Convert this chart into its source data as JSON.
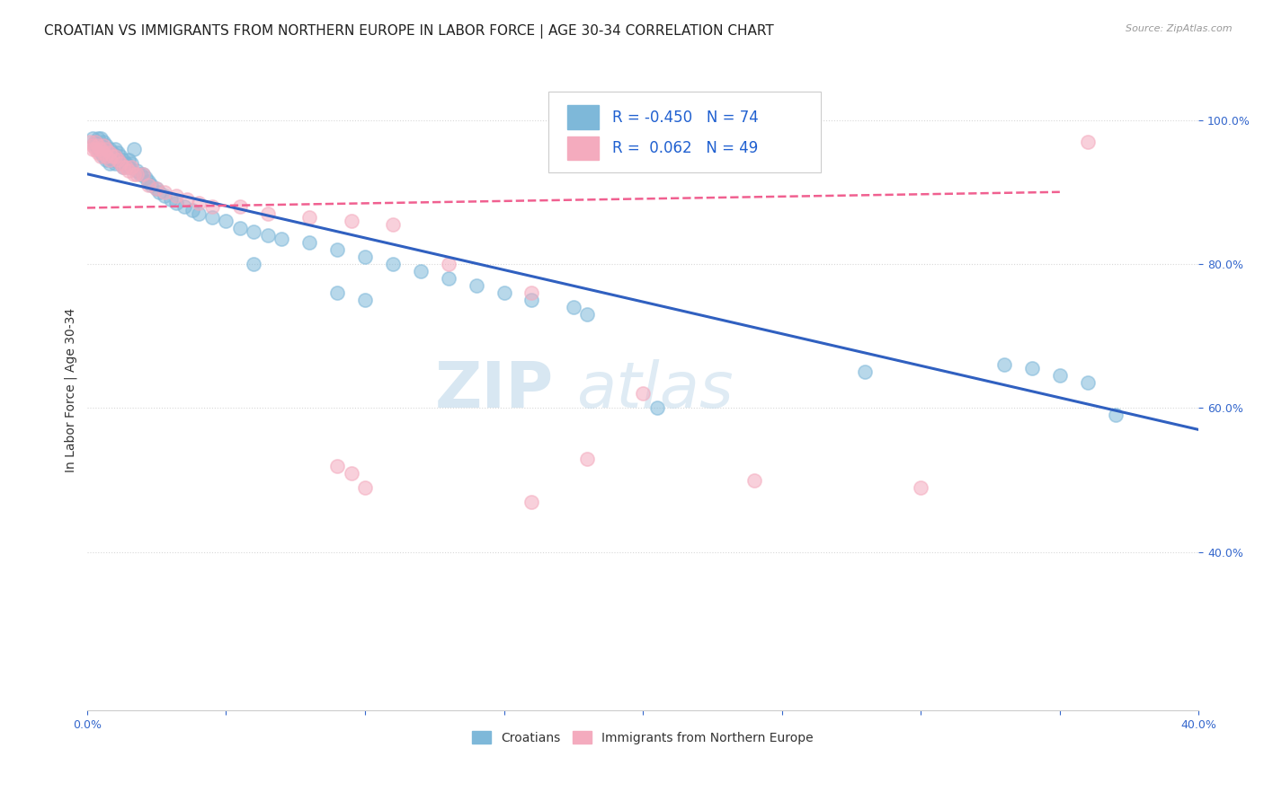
{
  "title": "CROATIAN VS IMMIGRANTS FROM NORTHERN EUROPE IN LABOR FORCE | AGE 30-34 CORRELATION CHART",
  "source": "Source: ZipAtlas.com",
  "ylabel": "In Labor Force | Age 30-34",
  "xlim": [
    0.0,
    0.4
  ],
  "ylim": [
    0.18,
    1.07
  ],
  "xticks": [
    0.0,
    0.05,
    0.1,
    0.15,
    0.2,
    0.25,
    0.3,
    0.35,
    0.4
  ],
  "xtick_labels": [
    "0.0%",
    "",
    "",
    "",
    "",
    "",
    "",
    "",
    "40.0%"
  ],
  "yticks": [
    0.4,
    0.6,
    0.8,
    1.0
  ],
  "ytick_labels": [
    "40.0%",
    "60.0%",
    "80.0%",
    "100.0%"
  ],
  "blue_R": -0.45,
  "blue_N": 74,
  "pink_R": 0.062,
  "pink_N": 49,
  "blue_color": "#7EB8D9",
  "pink_color": "#F4ABBE",
  "blue_line_color": "#3060C0",
  "pink_line_color": "#F06090",
  "legend_R_color": "#2060D0",
  "watermark_zip": "ZIP",
  "watermark_atlas": "atlas",
  "blue_trend_x": [
    0.0,
    0.4
  ],
  "blue_trend_y": [
    0.925,
    0.57
  ],
  "pink_trend_x": [
    0.0,
    0.35
  ],
  "pink_trend_y": [
    0.878,
    0.9
  ],
  "blue_scatter_x": [
    0.002,
    0.003,
    0.003,
    0.004,
    0.004,
    0.005,
    0.005,
    0.005,
    0.006,
    0.006,
    0.006,
    0.007,
    0.007,
    0.007,
    0.008,
    0.008,
    0.008,
    0.009,
    0.009,
    0.01,
    0.01,
    0.01,
    0.011,
    0.011,
    0.012,
    0.012,
    0.013,
    0.013,
    0.014,
    0.015,
    0.015,
    0.016,
    0.017,
    0.018,
    0.019,
    0.02,
    0.021,
    0.022,
    0.023,
    0.025,
    0.026,
    0.028,
    0.03,
    0.032,
    0.035,
    0.038,
    0.04,
    0.045,
    0.05,
    0.055,
    0.06,
    0.065,
    0.07,
    0.08,
    0.09,
    0.1,
    0.11,
    0.12,
    0.13,
    0.14,
    0.15,
    0.16,
    0.175,
    0.06,
    0.09,
    0.1,
    0.18,
    0.205,
    0.28,
    0.33,
    0.34,
    0.35,
    0.36,
    0.37
  ],
  "blue_scatter_y": [
    0.975,
    0.97,
    0.965,
    0.975,
    0.96,
    0.975,
    0.965,
    0.955,
    0.97,
    0.96,
    0.95,
    0.965,
    0.955,
    0.945,
    0.96,
    0.95,
    0.94,
    0.955,
    0.945,
    0.96,
    0.95,
    0.94,
    0.955,
    0.945,
    0.95,
    0.94,
    0.945,
    0.935,
    0.94,
    0.945,
    0.935,
    0.94,
    0.96,
    0.93,
    0.925,
    0.925,
    0.92,
    0.915,
    0.91,
    0.905,
    0.9,
    0.895,
    0.89,
    0.885,
    0.88,
    0.875,
    0.87,
    0.865,
    0.86,
    0.85,
    0.845,
    0.84,
    0.835,
    0.83,
    0.82,
    0.81,
    0.8,
    0.79,
    0.78,
    0.77,
    0.76,
    0.75,
    0.74,
    0.8,
    0.76,
    0.75,
    0.73,
    0.6,
    0.65,
    0.66,
    0.655,
    0.645,
    0.635,
    0.59
  ],
  "pink_scatter_x": [
    0.001,
    0.002,
    0.002,
    0.003,
    0.003,
    0.004,
    0.004,
    0.005,
    0.005,
    0.006,
    0.006,
    0.007,
    0.007,
    0.008,
    0.008,
    0.009,
    0.01,
    0.011,
    0.012,
    0.013,
    0.014,
    0.015,
    0.016,
    0.017,
    0.018,
    0.02,
    0.022,
    0.025,
    0.028,
    0.032,
    0.036,
    0.04,
    0.045,
    0.055,
    0.065,
    0.08,
    0.095,
    0.11,
    0.13,
    0.16,
    0.18,
    0.2,
    0.24,
    0.3,
    0.36,
    0.09,
    0.095,
    0.1,
    0.16
  ],
  "pink_scatter_y": [
    0.97,
    0.965,
    0.96,
    0.97,
    0.96,
    0.965,
    0.955,
    0.96,
    0.95,
    0.965,
    0.955,
    0.96,
    0.95,
    0.955,
    0.945,
    0.95,
    0.95,
    0.945,
    0.94,
    0.935,
    0.935,
    0.93,
    0.935,
    0.925,
    0.925,
    0.925,
    0.91,
    0.905,
    0.9,
    0.895,
    0.89,
    0.885,
    0.88,
    0.88,
    0.87,
    0.865,
    0.86,
    0.855,
    0.8,
    0.76,
    0.53,
    0.62,
    0.5,
    0.49,
    0.97,
    0.52,
    0.51,
    0.49,
    0.47
  ],
  "grid_color": "#D8D8D8",
  "bg_color": "#FFFFFF",
  "title_fontsize": 11,
  "tick_fontsize": 9,
  "ylabel_fontsize": 10
}
